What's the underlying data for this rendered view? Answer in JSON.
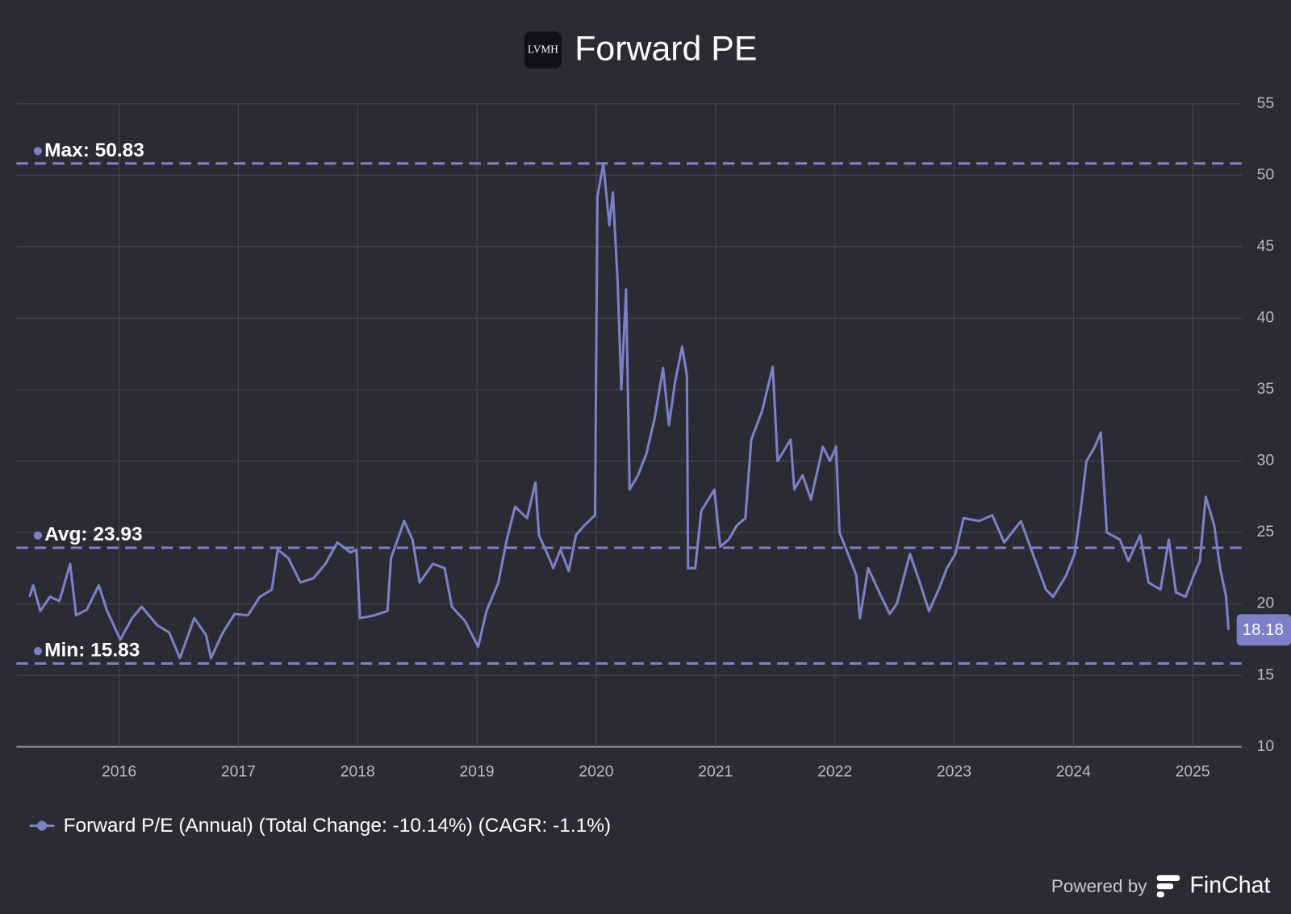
{
  "header": {
    "logo": "LVMH"
  },
  "chart_data": {
    "type": "line",
    "title": "Forward PE",
    "x": [
      2015.25,
      2015.28,
      2015.34,
      2015.42,
      2015.5,
      2015.59,
      2015.64,
      2015.73,
      2015.83,
      2015.9,
      2016.01,
      2016.11,
      2016.19,
      2016.32,
      2016.42,
      2016.51,
      2016.63,
      2016.73,
      2016.77,
      2016.87,
      2016.97,
      2017.08,
      2017.18,
      2017.28,
      2017.33,
      2017.42,
      2017.52,
      2017.63,
      2017.73,
      2017.83,
      2017.94,
      2017.99,
      2018.02,
      2018.14,
      2018.25,
      2018.28,
      2018.39,
      2018.46,
      2018.52,
      2018.63,
      2018.73,
      2018.79,
      2018.9,
      2019.01,
      2019.08,
      2019.18,
      2019.25,
      2019.32,
      2019.42,
      2019.49,
      2019.52,
      2019.59,
      2019.64,
      2019.7,
      2019.77,
      2019.83,
      2019.9,
      2019.99,
      2020.01,
      2020.06,
      2020.11,
      2020.14,
      2020.18,
      2020.21,
      2020.25,
      2020.28,
      2020.35,
      2020.42,
      2020.49,
      2020.56,
      2020.61,
      2020.66,
      2020.72,
      2020.76,
      2020.77,
      2020.83,
      2020.88,
      2020.99,
      2021.04,
      2021.11,
      2021.18,
      2021.25,
      2021.3,
      2021.39,
      2021.48,
      2021.52,
      2021.63,
      2021.66,
      2021.73,
      2021.8,
      2021.9,
      2021.96,
      2022.01,
      2022.04,
      2022.11,
      2022.18,
      2022.21,
      2022.28,
      2022.39,
      2022.46,
      2022.52,
      2022.63,
      2022.7,
      2022.79,
      2022.87,
      2022.94,
      2023.01,
      2023.08,
      2023.21,
      2023.32,
      2023.42,
      2023.56,
      2023.66,
      2023.77,
      2023.83,
      2023.94,
      2024.01,
      2024.06,
      2024.11,
      2024.18,
      2024.23,
      2024.28,
      2024.39,
      2024.46,
      2024.56,
      2024.63,
      2024.73,
      2024.8,
      2024.86,
      2024.94,
      2025.01,
      2025.06,
      2025.11,
      2025.18,
      2025.23,
      2025.28,
      2025.3
    ],
    "series": [
      {
        "name": "Forward P/E (Annual) (Total Change: -10.14%) (CAGR: -1.1%)",
        "color": "#7c80c6",
        "values": [
          20.5,
          21.3,
          19.5,
          20.5,
          20.2,
          22.8,
          19.2,
          19.6,
          21.3,
          19.5,
          17.5,
          19,
          19.8,
          18.5,
          18,
          16.2,
          19,
          17.8,
          16.2,
          18,
          19.3,
          19.2,
          20.5,
          21,
          23.8,
          23.2,
          21.5,
          21.8,
          22.8,
          24.3,
          23.6,
          23.8,
          19,
          19.2,
          19.5,
          23.2,
          25.8,
          24.5,
          21.5,
          22.8,
          22.5,
          19.8,
          18.8,
          17,
          19.5,
          21.5,
          24.5,
          26.8,
          26,
          28.5,
          24.8,
          23.5,
          22.5,
          23.8,
          22.3,
          24.8,
          25.5,
          26.2,
          48.5,
          50.83,
          46.5,
          48.8,
          42.5,
          35,
          42,
          28,
          29,
          30.5,
          33,
          36.5,
          32.5,
          35.5,
          38,
          36,
          22.5,
          22.5,
          26.5,
          28,
          24,
          24.5,
          25.5,
          26,
          31.5,
          33.5,
          36.6,
          30,
          31.5,
          28,
          29,
          27.3,
          31,
          30,
          31,
          25,
          23.5,
          22,
          19,
          22.5,
          20.5,
          19.3,
          20,
          23.5,
          21.8,
          19.5,
          21,
          22.5,
          23.5,
          26,
          25.8,
          26.2,
          24.3,
          25.8,
          23.5,
          21,
          20.5,
          22,
          23.5,
          26.5,
          30,
          31,
          32,
          25,
          24.5,
          23,
          24.8,
          21.5,
          21,
          24.5,
          20.8,
          20.5,
          22,
          23,
          27.5,
          25.5,
          22.5,
          20.5,
          18.18
        ]
      }
    ],
    "end_label": {
      "value": 18.18,
      "label": "18.18"
    },
    "reference_lines": [
      {
        "label": "Max: 50.83",
        "value": 50.83
      },
      {
        "label": "Avg: 23.93",
        "value": 23.93
      },
      {
        "label": "Min: 15.83",
        "value": 15.83
      }
    ],
    "xlim": [
      2015.14,
      2025.41
    ],
    "xticks": [
      2016,
      2017,
      2018,
      2019,
      2020,
      2021,
      2022,
      2023,
      2024,
      2025
    ],
    "ylim": [
      10,
      55
    ],
    "yticks": [
      10,
      15,
      20,
      25,
      30,
      35,
      40,
      45,
      50,
      55
    ],
    "grid": true
  },
  "footer": {
    "powered_by": "Powered by",
    "brand": "FinChat"
  }
}
